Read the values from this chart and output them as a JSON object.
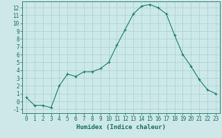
{
  "x": [
    0,
    1,
    2,
    3,
    4,
    5,
    6,
    7,
    8,
    9,
    10,
    11,
    12,
    13,
    14,
    15,
    16,
    17,
    18,
    19,
    20,
    21,
    22,
    23
  ],
  "y": [
    0.5,
    -0.5,
    -0.5,
    -0.8,
    2.0,
    3.5,
    3.2,
    3.8,
    3.8,
    4.2,
    5.0,
    7.2,
    9.2,
    11.2,
    12.2,
    12.4,
    12.0,
    11.2,
    8.5,
    6.0,
    4.5,
    2.8,
    1.5,
    1.0
  ],
  "line_color": "#1a7a6a",
  "marker": "+",
  "marker_color": "#1a7a6a",
  "bg_color": "#cce8e8",
  "grid_color": "#a8d0d0",
  "xlabel": "Humidex (Indice chaleur)",
  "xlim": [
    -0.5,
    23.5
  ],
  "ylim": [
    -1.5,
    12.8
  ],
  "xticks": [
    0,
    1,
    2,
    3,
    4,
    5,
    6,
    7,
    8,
    9,
    10,
    11,
    12,
    13,
    14,
    15,
    16,
    17,
    18,
    19,
    20,
    21,
    22,
    23
  ],
  "yticks": [
    -1,
    0,
    1,
    2,
    3,
    4,
    5,
    6,
    7,
    8,
    9,
    10,
    11,
    12
  ],
  "tick_fontsize": 5.5,
  "xlabel_fontsize": 6.5,
  "axis_color": "#1a6a5a"
}
